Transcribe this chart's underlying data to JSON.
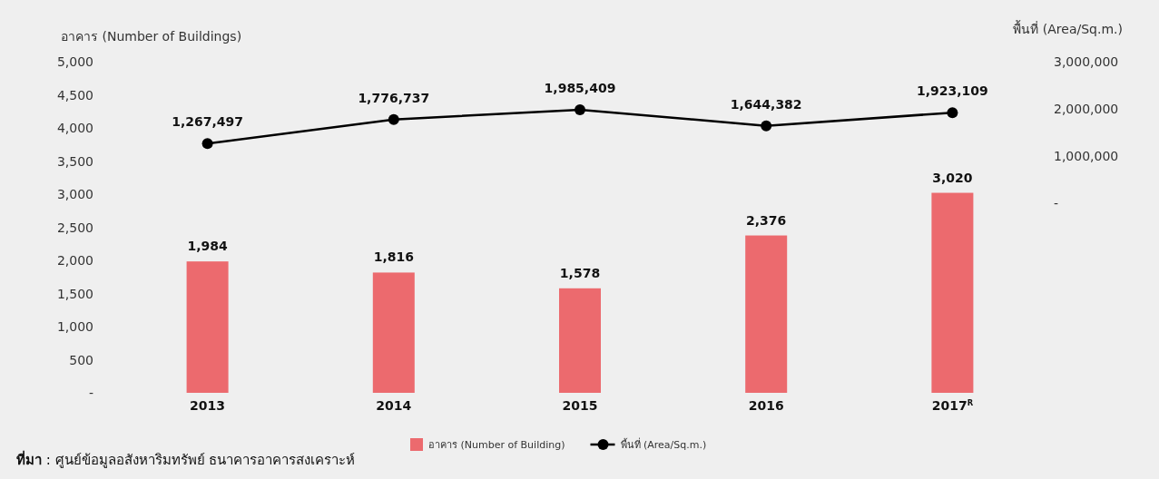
{
  "chart_data": {
    "type": "bar",
    "categories": [
      "2013",
      "2014",
      "2015",
      "2016",
      "2017$^{R}$"
    ],
    "series": [
      {
        "name": "อาคาร (Number of Building)",
        "color": "#ec6a6e",
        "values": [
          1984,
          1816,
          1578,
          2376,
          3020
        ],
        "value_labels": [
          "1,984",
          "1,816",
          "1,578",
          "2,376",
          "3,020"
        ]
      },
      {
        "name": "พื้นที่ (Area/Sq.m.)",
        "type": "line",
        "axis": "y2",
        "color": "#000000",
        "marker": "circle",
        "values": [
          1267497,
          1776737,
          1985409,
          1644382,
          1923109
        ],
        "value_labels": [
          "1,267,497",
          "1,776,737",
          "1,985,409",
          "1,644,382",
          "1,923,109"
        ]
      }
    ],
    "ylabel": "อาคาร (Number of Buildings)",
    "y2label": "พื้นที่ (Area/Sq.m.)",
    "ylim": [
      0,
      5000
    ],
    "yticks": [
      {
        "value": 0,
        "label": "-"
      },
      {
        "value": 500,
        "label": "500"
      },
      {
        "value": 1000,
        "label": "1,000"
      },
      {
        "value": 1500,
        "label": "1,500"
      },
      {
        "value": 2000,
        "label": "2,000"
      },
      {
        "value": 2500,
        "label": "2,500"
      },
      {
        "value": 3000,
        "label": "3,000"
      },
      {
        "value": 3500,
        "label": "3,500"
      },
      {
        "value": 4000,
        "label": "4,000"
      },
      {
        "value": 4500,
        "label": "4,500"
      },
      {
        "value": 5000,
        "label": "5,000"
      }
    ],
    "y2lim": [
      -4000000,
      3000000
    ],
    "y2ticks": [
      {
        "value": 0,
        "label": "-"
      },
      {
        "value": 1000000,
        "label": "1,000,000"
      },
      {
        "value": 2000000,
        "label": "2,000,000"
      },
      {
        "value": 3000000,
        "label": "3,000,000"
      }
    ],
    "grid": false,
    "legend": "bottom",
    "annotations": [
      "**ที่มา** : ศูนย์ข้อมูลอสังหาริมทรัพย์ ธนาคารอาคารสงเคราะห์"
    ]
  }
}
